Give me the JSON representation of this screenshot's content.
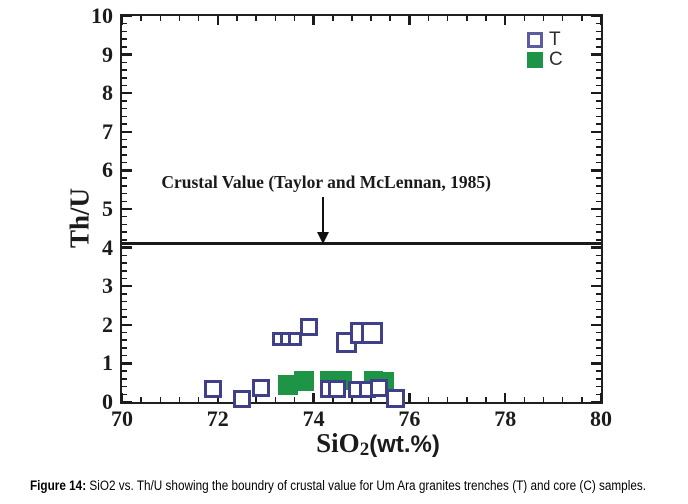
{
  "figure": {
    "caption_label": "Figure 14:",
    "caption_text": " SiO2 vs. Th/U showing the boundry of crustal value for Um Ara granites trenches (T) and core (C) samples."
  },
  "chart_data": {
    "type": "scatter",
    "xlabel": {
      "base": "SiO",
      "sub": "2",
      "unit": "(wt.%)"
    },
    "ylabel": "Th/U",
    "xlim": [
      70,
      80
    ],
    "ylim": [
      0,
      10
    ],
    "x_major_ticks": [
      70,
      72,
      74,
      76,
      78,
      80
    ],
    "x_minor_step": 0.4,
    "y_major_ticks": [
      0,
      1,
      2,
      3,
      4,
      5,
      6,
      7,
      8,
      9,
      10
    ],
    "y_minor_step": 0.2,
    "grid": false,
    "legend_position": "top-right",
    "annotation": {
      "text": "Crustal Value (Taylor and McLennan, 1985)",
      "arrow_x": 74.2,
      "line_y": 4.1
    },
    "colors": {
      "marker_navy": "#40408a",
      "legend_navy": "#5c5ca0",
      "core_green": "#1e9447",
      "axis_black": "#1b1b1b"
    },
    "series": [
      {
        "name": "T",
        "label": "trenches",
        "marker": "open-square",
        "color": "#40408a",
        "legend_color": "#5c5ca0",
        "default_size": 18,
        "points": [
          [
            71.9,
            0.33
          ],
          [
            72.5,
            0.08
          ],
          [
            72.9,
            0.35
          ],
          [
            73.28,
            1.62,
            14
          ],
          [
            73.45,
            1.62,
            14
          ],
          [
            73.62,
            1.63,
            14
          ],
          [
            73.9,
            1.95
          ],
          [
            74.68,
            1.55,
            21
          ],
          [
            74.99,
            1.79,
            22
          ],
          [
            75.22,
            1.8,
            22
          ],
          [
            74.32,
            0.33
          ],
          [
            74.48,
            0.33
          ],
          [
            74.9,
            0.33,
            17
          ],
          [
            75.12,
            0.33,
            17
          ],
          [
            75.36,
            0.36
          ],
          [
            75.72,
            0.1,
            19
          ]
        ]
      },
      {
        "name": "C",
        "label": "core",
        "marker": "filled-square",
        "color": "#1e9447",
        "default_size": 20,
        "points": [
          [
            73.46,
            0.45
          ],
          [
            73.79,
            0.55
          ],
          [
            74.33,
            0.55,
            19
          ],
          [
            74.6,
            0.55,
            19
          ],
          [
            75.25,
            0.55,
            19
          ],
          [
            75.48,
            0.53,
            19
          ]
        ]
      }
    ]
  }
}
